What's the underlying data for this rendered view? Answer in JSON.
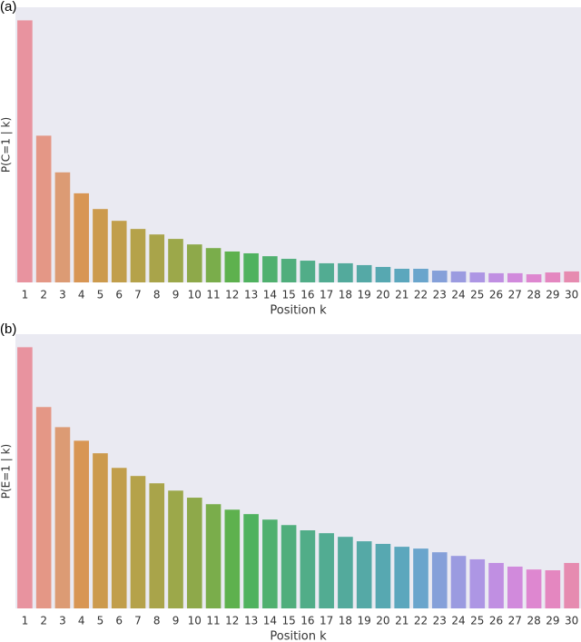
{
  "chart_data": [
    {
      "type": "bar",
      "label": "(a)",
      "xlabel": "Position k",
      "ylabel": "P(C=1 | k)",
      "categories": [
        "1",
        "2",
        "3",
        "4",
        "5",
        "6",
        "7",
        "8",
        "9",
        "10",
        "11",
        "12",
        "13",
        "14",
        "15",
        "16",
        "17",
        "18",
        "19",
        "20",
        "21",
        "22",
        "23",
        "24",
        "25",
        "26",
        "27",
        "28",
        "29",
        "30"
      ],
      "values": [
        1.0,
        0.56,
        0.42,
        0.34,
        0.28,
        0.235,
        0.204,
        0.183,
        0.166,
        0.145,
        0.131,
        0.118,
        0.111,
        0.1,
        0.09,
        0.083,
        0.073,
        0.073,
        0.066,
        0.059,
        0.052,
        0.052,
        0.045,
        0.042,
        0.038,
        0.035,
        0.035,
        0.031,
        0.038,
        0.042
      ],
      "ylim": [
        0,
        1.05
      ],
      "colors": [
        "#e8939f",
        "#e49786",
        "#dc9b74",
        "#d89654",
        "#cc9a4d",
        "#c19e4b",
        "#b5a24a",
        "#a9a44a",
        "#9ca84a",
        "#8ea94a",
        "#7aad4b",
        "#5eb14e",
        "#4fb25f",
        "#50b06f",
        "#50ae7c",
        "#51ad88",
        "#52ac92",
        "#53aa9c",
        "#55a9a6",
        "#57a8b1",
        "#5ca7bd",
        "#6aa5cc",
        "#85a0d9",
        "#9b9be0",
        "#ad96e4",
        "#c08fe2",
        "#d18adc",
        "#de87d0",
        "#e487c0",
        "#e68bb0"
      ]
    },
    {
      "type": "bar",
      "label": "(b)",
      "xlabel": "Position k",
      "ylabel": "P(E=1 | k)",
      "categories": [
        "1",
        "2",
        "3",
        "4",
        "5",
        "6",
        "7",
        "8",
        "9",
        "10",
        "11",
        "12",
        "13",
        "14",
        "15",
        "16",
        "17",
        "18",
        "19",
        "20",
        "21",
        "22",
        "23",
        "24",
        "25",
        "26",
        "27",
        "28",
        "29",
        "30"
      ],
      "values": [
        1.0,
        0.771,
        0.694,
        0.642,
        0.594,
        0.538,
        0.507,
        0.479,
        0.451,
        0.424,
        0.399,
        0.378,
        0.361,
        0.34,
        0.319,
        0.299,
        0.288,
        0.274,
        0.257,
        0.247,
        0.236,
        0.229,
        0.215,
        0.201,
        0.188,
        0.174,
        0.16,
        0.149,
        0.146,
        0.174
      ],
      "ylim": [
        0,
        1.05
      ],
      "colors": [
        "#e8939f",
        "#e49786",
        "#dc9b74",
        "#d89654",
        "#cc9a4d",
        "#c19e4b",
        "#b5a24a",
        "#a9a44a",
        "#9ca84a",
        "#8ea94a",
        "#7aad4b",
        "#5eb14e",
        "#4fb25f",
        "#50b06f",
        "#50ae7c",
        "#51ad88",
        "#52ac92",
        "#53aa9c",
        "#55a9a6",
        "#57a8b1",
        "#5ca7bd",
        "#6aa5cc",
        "#85a0d9",
        "#9b9be0",
        "#ad96e4",
        "#c08fe2",
        "#d18adc",
        "#de87d0",
        "#e487c0",
        "#e68bb0"
      ]
    }
  ]
}
